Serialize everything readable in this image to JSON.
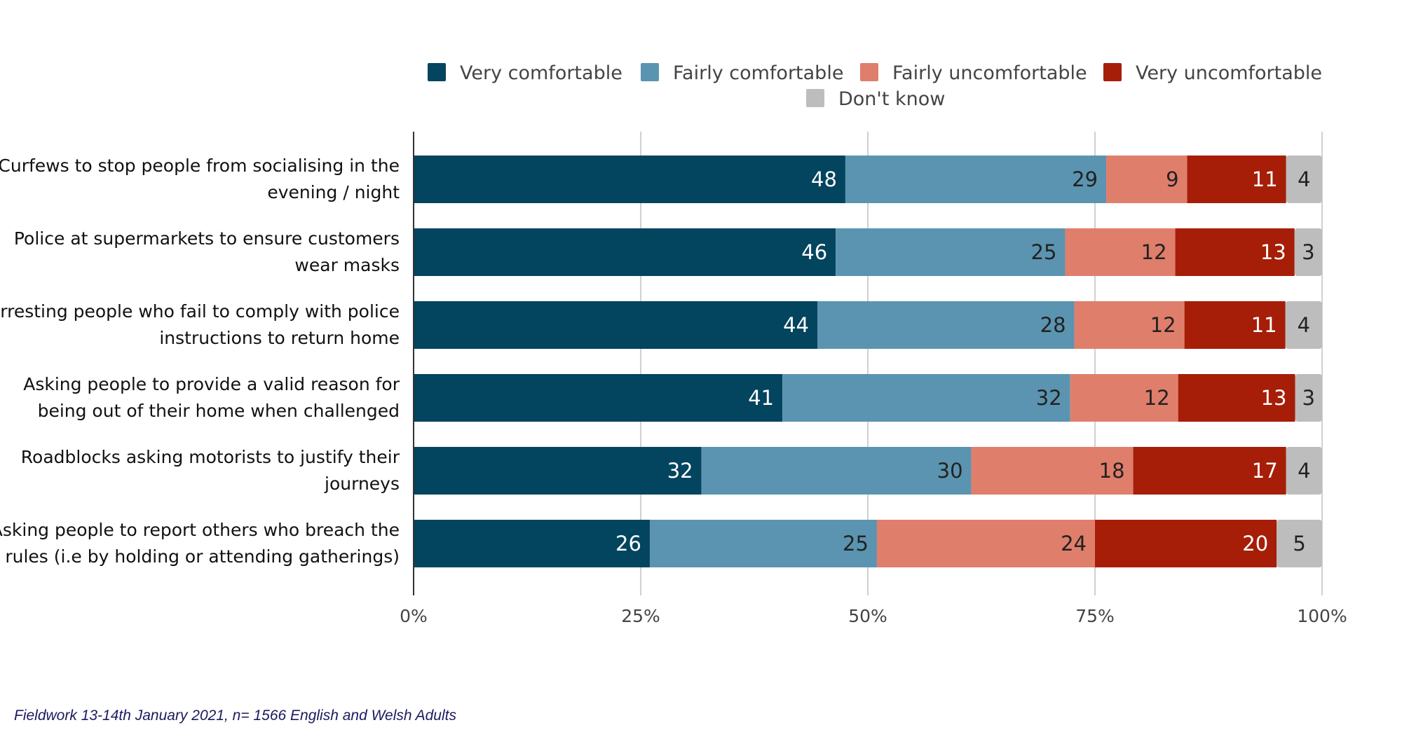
{
  "chart_data": {
    "type": "bar",
    "orientation": "horizontal",
    "stacked": true,
    "title": "",
    "xlabel": "",
    "ylabel": "",
    "xlim": [
      0,
      100
    ],
    "x_ticks": [
      "0%",
      "25%",
      "50%",
      "75%",
      "100%"
    ],
    "x_tick_values": [
      0,
      25,
      50,
      75,
      100
    ],
    "grid": true,
    "legend_position": "top",
    "categories": [
      [
        "Curfews to stop people from socialising in the",
        "evening / night"
      ],
      [
        "Police at supermarkets to ensure customers",
        "wear masks"
      ],
      [
        "Arresting people who fail to comply with police",
        "instructions to return home"
      ],
      [
        "Asking people to provide a valid reason for",
        "being out of their home when challenged"
      ],
      [
        "Roadblocks asking motorists to justify their",
        "journeys"
      ],
      [
        "Asking people to report others who breach the",
        "rules (i.e by holding or attending gatherings)"
      ]
    ],
    "series": [
      {
        "name": "Very comfortable",
        "color": "#03445f",
        "label_color": "#ffffff",
        "values": [
          48,
          46,
          44,
          41,
          32,
          26
        ]
      },
      {
        "name": "Fairly comfortable",
        "color": "#5b94b0",
        "label_color": "#222222",
        "values": [
          29,
          25,
          28,
          32,
          30,
          25
        ]
      },
      {
        "name": "Fairly uncomfortable",
        "color": "#e07e6c",
        "label_color": "#222222",
        "values": [
          9,
          12,
          12,
          12,
          18,
          24
        ]
      },
      {
        "name": "Very uncomfortable",
        "color": "#a61e08",
        "label_color": "#ffffff",
        "values": [
          11,
          13,
          11,
          13,
          17,
          20
        ]
      },
      {
        "name": "Don't know",
        "color": "#bdbdbd",
        "label_color": "#222222",
        "values": [
          4,
          3,
          4,
          3,
          4,
          5
        ]
      }
    ]
  },
  "footnote": "Fieldwork 13-14th January 2021, n= 1566 English and Welsh Adults"
}
